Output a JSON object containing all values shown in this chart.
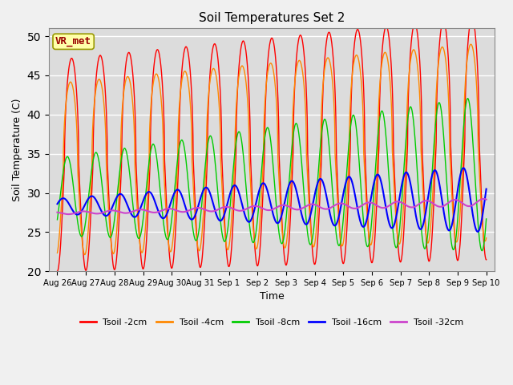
{
  "title": "Soil Temperatures Set 2",
  "xlabel": "Time",
  "ylabel": "Soil Temperature (C)",
  "ylim": [
    20,
    51
  ],
  "yticks": [
    20,
    25,
    30,
    35,
    40,
    45,
    50
  ],
  "bg_color": "#dcdcdc",
  "fig_color": "#f0f0f0",
  "annotation_text": "VR_met",
  "annotation_bg": "#ffffaa",
  "annotation_border": "#999900",
  "annotation_text_color": "#990000",
  "colors": {
    "Tsoil -2cm": "#ff0000",
    "Tsoil -4cm": "#ff8800",
    "Tsoil -8cm": "#00cc00",
    "Tsoil -16cm": "#0000ff",
    "Tsoil -32cm": "#cc44cc"
  },
  "x_tick_labels": [
    "Aug 26",
    "Aug 27",
    "Aug 28",
    "Aug 29",
    "Aug 30",
    "Aug 31",
    "Sep 1",
    "Sep 2",
    "Sep 3",
    "Sep 4",
    "Sep 5",
    "Sep 6",
    "Sep 7",
    "Sep 8",
    "Sep 9",
    "Sep 10"
  ],
  "x_tick_positions": [
    0,
    1,
    2,
    3,
    4,
    5,
    6,
    7,
    8,
    9,
    10,
    11,
    12,
    13,
    14,
    15
  ]
}
